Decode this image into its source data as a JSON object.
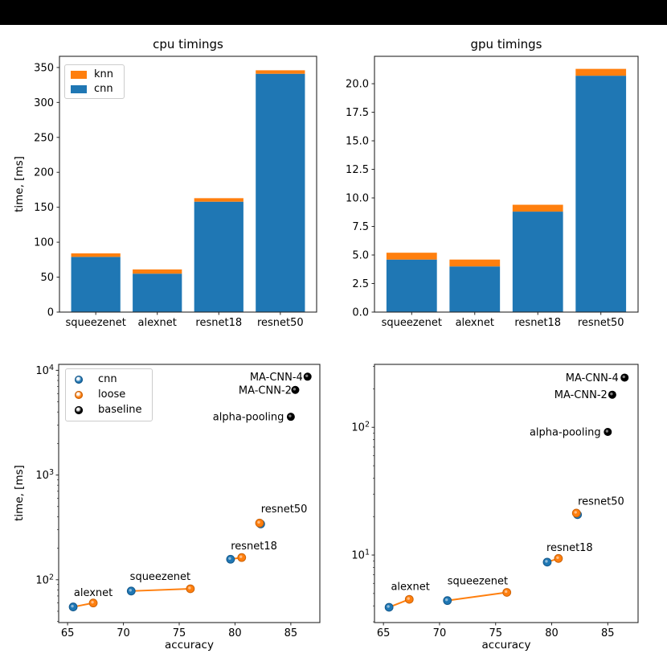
{
  "page": {
    "background": "#ffffff",
    "top_bar_color": "#000000"
  },
  "colors": {
    "cnn_blue": "#1f77b4",
    "knn_orange": "#ff7f0e",
    "baseline_black": "#000000"
  },
  "chart_data": [
    {
      "id": "cpu-timings",
      "type": "bar",
      "title": "cpu timings",
      "ylabel": "time, [ms]",
      "categories": [
        "squeezenet",
        "alexnet",
        "resnet18",
        "resnet50"
      ],
      "series": [
        {
          "name": "cnn",
          "color": "#1f77b4",
          "values": [
            79,
            55,
            158,
            341
          ]
        },
        {
          "name": "knn",
          "color": "#ff7f0e",
          "values": [
            5,
            6,
            5,
            5
          ]
        }
      ],
      "legend": [
        "knn",
        "cnn"
      ],
      "legend_colors": [
        "#ff7f0e",
        "#1f77b4"
      ],
      "ytick_values": [
        0,
        50,
        100,
        150,
        200,
        250,
        300,
        350
      ],
      "ytick_labels": [
        "0",
        "50",
        "100",
        "150",
        "200",
        "250",
        "300",
        "350"
      ],
      "ylim": [
        0,
        366
      ],
      "grid": false,
      "legend_position": "upper-left"
    },
    {
      "id": "gpu-timings",
      "type": "bar",
      "title": "gpu timings",
      "ylabel": "",
      "categories": [
        "squeezenet",
        "alexnet",
        "resnet18",
        "resnet50"
      ],
      "series": [
        {
          "name": "cnn",
          "color": "#1f77b4",
          "values": [
            4.6,
            4.0,
            8.8,
            20.7
          ]
        },
        {
          "name": "knn",
          "color": "#ff7f0e",
          "values": [
            0.6,
            0.6,
            0.6,
            0.6
          ]
        }
      ],
      "ytick_values": [
        0,
        2.5,
        5,
        7.5,
        10,
        12.5,
        15,
        17.5,
        20
      ],
      "ytick_labels": [
        "0.0",
        "2.5",
        "5.0",
        "7.5",
        "10.0",
        "12.5",
        "15.0",
        "17.5",
        "20.0"
      ],
      "ylim": [
        0,
        22.4
      ],
      "grid": false
    },
    {
      "id": "cpu-scatter",
      "type": "scatter",
      "xlabel": "accuracy",
      "ylabel": "time, [ms]",
      "yscale": "log",
      "xtick_values": [
        65,
        70,
        75,
        80,
        85
      ],
      "xlim": [
        64.2,
        87.6
      ],
      "ylim": [
        39,
        11400
      ],
      "ytick_values": [
        100,
        1000,
        10000
      ],
      "series": [
        {
          "name": "cnn",
          "color": "#1f77b4",
          "points": [
            {
              "model": "alexnet",
              "x": 65.5,
              "y": 55
            },
            {
              "model": "squeezenet",
              "x": 70.7,
              "y": 78
            },
            {
              "model": "resnet18",
              "x": 79.6,
              "y": 157
            },
            {
              "model": "resnet50",
              "x": 82.3,
              "y": 341
            }
          ]
        },
        {
          "name": "loose",
          "color": "#ff7f0e",
          "points": [
            {
              "model": "alexnet",
              "x": 67.3,
              "y": 60
            },
            {
              "model": "squeezenet",
              "x": 76.0,
              "y": 82
            },
            {
              "model": "resnet18",
              "x": 80.6,
              "y": 163
            },
            {
              "model": "resnet50",
              "x": 82.2,
              "y": 348
            }
          ]
        },
        {
          "name": "baseline",
          "color": "#000000",
          "points": [
            {
              "model": "alpha-pooling",
              "x": 85.0,
              "y": 3600
            },
            {
              "model": "MA-CNN-2",
              "x": 85.4,
              "y": 6500
            },
            {
              "model": "MA-CNN-4",
              "x": 86.5,
              "y": 8700
            }
          ]
        }
      ],
      "linked_models": [
        "alexnet",
        "squeezenet",
        "resnet18",
        "resnet50"
      ],
      "annotations": [
        {
          "text": "alexnet",
          "x": 67.3,
          "y": 76
        },
        {
          "text": "squeezenet",
          "x": 73.3,
          "y": 108
        },
        {
          "text": "resnet18",
          "x": 81.7,
          "y": 211
        },
        {
          "text": "resnet50",
          "x": 84.4,
          "y": 475
        },
        {
          "text": "alpha-pooling",
          "x": 81.2,
          "y": 3600
        },
        {
          "text": "MA-CNN-2",
          "x": 82.7,
          "y": 6500
        },
        {
          "text": "MA-CNN-4",
          "x": 83.7,
          "y": 8700
        }
      ],
      "legend": [
        "cnn",
        "loose",
        "baseline"
      ],
      "legend_colors": [
        "#1f77b4",
        "#ff7f0e",
        "#000000"
      ],
      "legend_position": "upper-left"
    },
    {
      "id": "gpu-scatter",
      "type": "scatter",
      "xlabel": "accuracy",
      "ylabel": "",
      "yscale": "log",
      "xtick_values": [
        65,
        70,
        75,
        80,
        85
      ],
      "xlim": [
        64.2,
        87.7
      ],
      "ylim": [
        2.96,
        311
      ],
      "ytick_values": [
        10,
        100
      ],
      "series": [
        {
          "name": "cnn",
          "color": "#1f77b4",
          "points": [
            {
              "model": "alexnet",
              "x": 65.5,
              "y": 3.9
            },
            {
              "model": "squeezenet",
              "x": 70.7,
              "y": 4.4
            },
            {
              "model": "resnet18",
              "x": 79.6,
              "y": 8.8
            },
            {
              "model": "resnet50",
              "x": 82.3,
              "y": 20.7
            }
          ]
        },
        {
          "name": "loose",
          "color": "#ff7f0e",
          "points": [
            {
              "model": "alexnet",
              "x": 67.3,
              "y": 4.5
            },
            {
              "model": "squeezenet",
              "x": 76.0,
              "y": 5.1
            },
            {
              "model": "resnet18",
              "x": 80.6,
              "y": 9.4
            },
            {
              "model": "resnet50",
              "x": 82.2,
              "y": 21.3
            }
          ]
        },
        {
          "name": "baseline",
          "color": "#000000",
          "points": [
            {
              "model": "alpha-pooling",
              "x": 85.0,
              "y": 92
            },
            {
              "model": "MA-CNN-2",
              "x": 85.4,
              "y": 180
            },
            {
              "model": "MA-CNN-4",
              "x": 86.5,
              "y": 245
            }
          ]
        }
      ],
      "linked_models": [
        "alexnet",
        "squeezenet",
        "resnet18",
        "resnet50"
      ],
      "annotations": [
        {
          "text": "alexnet",
          "x": 67.4,
          "y": 5.7
        },
        {
          "text": "squeezenet",
          "x": 73.4,
          "y": 6.3
        },
        {
          "text": "resnet18",
          "x": 81.6,
          "y": 11.5
        },
        {
          "text": "resnet50",
          "x": 84.4,
          "y": 26.5
        },
        {
          "text": "alpha-pooling",
          "x": 81.2,
          "y": 92
        },
        {
          "text": "MA-CNN-2",
          "x": 82.6,
          "y": 180
        },
        {
          "text": "MA-CNN-4",
          "x": 83.6,
          "y": 245
        }
      ]
    }
  ]
}
